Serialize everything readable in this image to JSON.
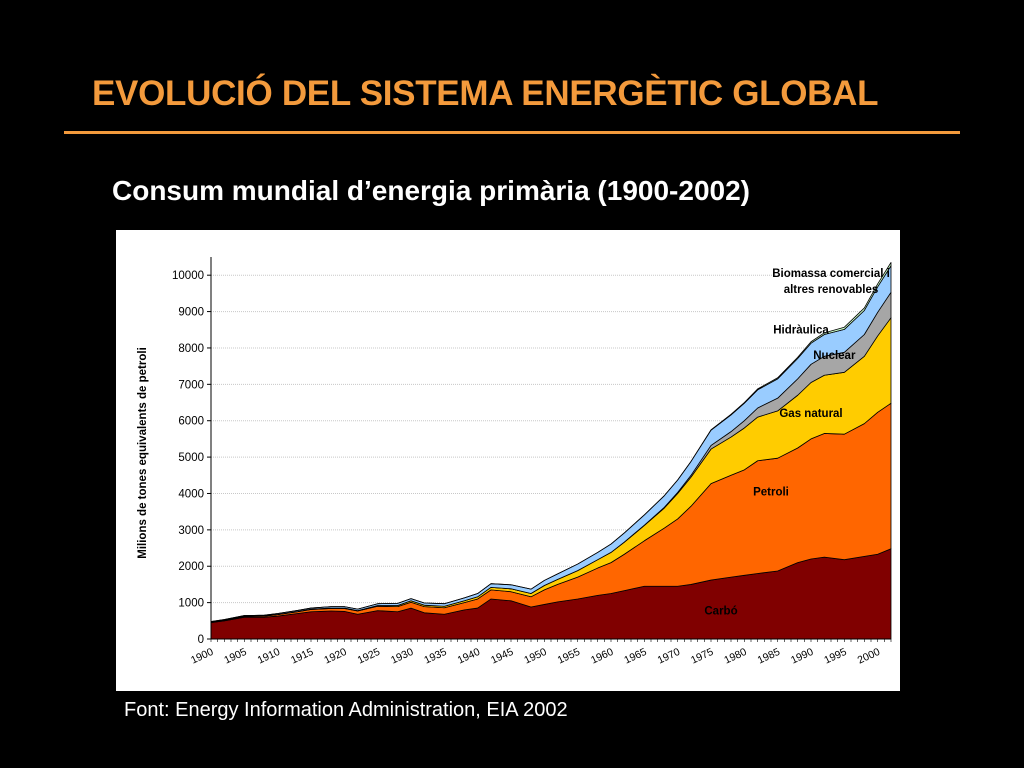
{
  "slide": {
    "title": "EVOLUCIÓ DEL SISTEMA ENERGÈTIC GLOBAL",
    "subtitle": "Consum mundial d’energia primària (1900-2002)",
    "source": "Font: Energy Information Administration, EIA 2002"
  },
  "colors": {
    "background": "#000000",
    "accent": "#f39a3c",
    "carbo": "#800000",
    "petroli": "#ff6600",
    "gas": "#ffcc00",
    "nuclear": "#a6a6a6",
    "hidraulica": "#99ccff",
    "biomassa": "#ccffcc"
  },
  "chart_data": {
    "type": "area",
    "stacked": true,
    "title": "",
    "xlabel": "",
    "ylabel": "Milions de tones equivalents de petroli",
    "xlim": [
      1900,
      2002
    ],
    "ylim": [
      0,
      10500
    ],
    "yticks": [
      0,
      1000,
      2000,
      3000,
      4000,
      5000,
      6000,
      7000,
      8000,
      9000,
      10000
    ],
    "xticks": [
      1900,
      1905,
      1910,
      1915,
      1920,
      1925,
      1930,
      1935,
      1940,
      1945,
      1950,
      1955,
      1960,
      1965,
      1970,
      1975,
      1980,
      1985,
      1990,
      1995,
      2000
    ],
    "grid": true,
    "x": [
      1900,
      1902,
      1905,
      1908,
      1910,
      1913,
      1915,
      1918,
      1920,
      1922,
      1925,
      1928,
      1930,
      1932,
      1935,
      1938,
      1940,
      1942,
      1945,
      1948,
      1950,
      1952,
      1955,
      1958,
      1960,
      1962,
      1965,
      1968,
      1970,
      1972,
      1975,
      1978,
      1980,
      1982,
      1985,
      1988,
      1990,
      1992,
      1995,
      1998,
      2000,
      2002
    ],
    "series": [
      {
        "name": "Carbó",
        "color_key": "carbo",
        "values": [
          450,
          500,
          600,
          600,
          630,
          700,
          750,
          770,
          760,
          680,
          780,
          750,
          850,
          720,
          680,
          800,
          850,
          1100,
          1050,
          880,
          950,
          1020,
          1100,
          1200,
          1250,
          1330,
          1450,
          1450,
          1450,
          1500,
          1620,
          1700,
          1750,
          1800,
          1870,
          2100,
          2200,
          2250,
          2180,
          2270,
          2330,
          2480
        ]
      },
      {
        "name": "Petroli",
        "color_key": "petroli",
        "values": [
          10,
          15,
          20,
          30,
          40,
          50,
          60,
          70,
          80,
          90,
          120,
          140,
          160,
          170,
          180,
          200,
          250,
          250,
          250,
          280,
          400,
          480,
          600,
          750,
          850,
          1000,
          1250,
          1600,
          1850,
          2150,
          2650,
          2800,
          2900,
          3100,
          3100,
          3150,
          3300,
          3400,
          3450,
          3650,
          3900,
          4000
        ]
      },
      {
        "name": "Gas natural",
        "color_key": "gas",
        "values": [
          5,
          5,
          5,
          5,
          5,
          5,
          10,
          10,
          10,
          10,
          20,
          30,
          40,
          40,
          40,
          50,
          60,
          70,
          80,
          90,
          120,
          140,
          180,
          230,
          280,
          330,
          420,
          550,
          700,
          800,
          950,
          1050,
          1150,
          1200,
          1300,
          1450,
          1550,
          1600,
          1700,
          1850,
          2100,
          2350
        ]
      },
      {
        "name": "Nuclear",
        "color_key": "nuclear",
        "values": [
          0,
          0,
          0,
          0,
          0,
          0,
          0,
          0,
          0,
          0,
          0,
          0,
          0,
          0,
          0,
          0,
          0,
          0,
          0,
          0,
          0,
          0,
          0,
          0,
          0,
          5,
          10,
          20,
          30,
          50,
          100,
          150,
          200,
          250,
          350,
          450,
          500,
          520,
          550,
          600,
          650,
          700
        ]
      },
      {
        "name": "Hidràulica",
        "color_key": "hidraulica",
        "values": [
          15,
          15,
          20,
          20,
          25,
          30,
          30,
          40,
          40,
          40,
          50,
          60,
          60,
          60,
          70,
          80,
          90,
          100,
          110,
          120,
          140,
          150,
          180,
          200,
          230,
          250,
          280,
          320,
          340,
          380,
          420,
          460,
          480,
          500,
          530,
          560,
          580,
          600,
          630,
          660,
          700,
          730
        ]
      },
      {
        "name": "Biomassa comercial i altres renovables",
        "color_key": "biomassa",
        "values": [
          0,
          0,
          0,
          0,
          0,
          0,
          0,
          0,
          0,
          0,
          0,
          0,
          0,
          0,
          0,
          0,
          0,
          0,
          0,
          0,
          0,
          0,
          0,
          0,
          0,
          0,
          0,
          0,
          0,
          0,
          10,
          15,
          20,
          25,
          30,
          35,
          40,
          45,
          60,
          70,
          80,
          90
        ]
      }
    ],
    "area_labels": [
      {
        "series": "Biomassa comercial i altres renovables",
        "lines": [
          "Biomassa comercial i",
          "altres renovables"
        ],
        "at": [
          1993,
          9950
        ]
      },
      {
        "series": "Hidràulica",
        "lines": [
          "Hidràulica"
        ],
        "at": [
          1988.5,
          8400
        ]
      },
      {
        "series": "Nuclear",
        "lines": [
          "Nuclear"
        ],
        "at": [
          1993.5,
          7700
        ]
      },
      {
        "series": "Gas natural",
        "lines": [
          "Gas natural"
        ],
        "at": [
          1990,
          6100
        ]
      },
      {
        "series": "Petroli",
        "lines": [
          "Petroli"
        ],
        "at": [
          1984,
          3950
        ]
      },
      {
        "series": "Carbó",
        "lines": [
          "Carbó"
        ],
        "at": [
          1976.5,
          670
        ]
      }
    ]
  }
}
